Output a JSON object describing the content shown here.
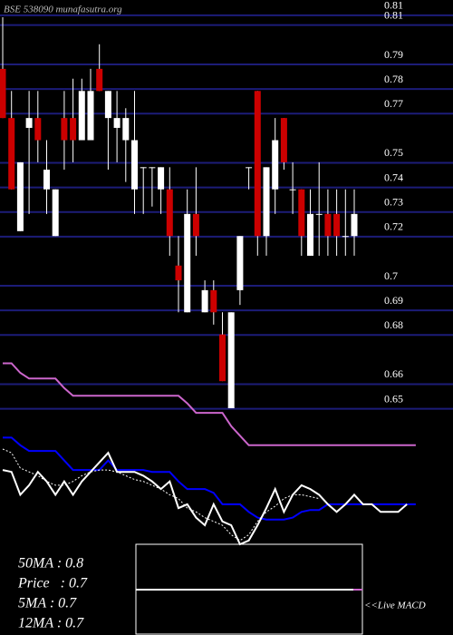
{
  "title": "BSE 538090  munafasutra.org",
  "chart_data": {
    "type": "candlestick",
    "ylim": [
      0.648,
      0.814
    ],
    "yticks": [
      {
        "value": 0.81,
        "label": "0.81"
      },
      {
        "value": 0.806,
        "label": "0.81"
      },
      0.79,
      0.78,
      0.77,
      0.75,
      0.74,
      0.73,
      0.72,
      0.7,
      0.69,
      0.68,
      0.66,
      0.65
    ],
    "grid": true,
    "grid_color": "#1c1c78",
    "up_color": "#ffffff",
    "down_color": "#cc0000",
    "open": [
      0.786,
      0.766,
      0.72,
      0.762,
      0.766,
      0.737,
      0.718,
      0.766,
      0.766,
      0.757,
      0.757,
      0.786,
      0.766,
      0.762,
      0.757,
      0.737,
      0.746,
      0.746,
      0.737,
      0.737,
      0.706,
      0.687,
      0.727,
      0.687,
      0.696,
      0.678,
      0.648,
      0.696,
      0.746,
      0.777,
      0.718,
      0.737,
      0.766,
      0.737,
      0.737,
      0.71,
      0.727,
      0.727,
      0.727,
      0.718,
      0.718
    ],
    "high": [
      0.807,
      0.777,
      0.748,
      0.777,
      0.777,
      0.757,
      0.737,
      0.777,
      0.782,
      0.782,
      0.786,
      0.796,
      0.777,
      0.777,
      0.77,
      0.777,
      0.746,
      0.746,
      0.746,
      0.746,
      0.718,
      0.737,
      0.746,
      0.7,
      0.7,
      0.687,
      0.687,
      0.718,
      0.746,
      0.777,
      0.746,
      0.766,
      0.766,
      0.748,
      0.737,
      0.737,
      0.748,
      0.737,
      0.737,
      0.737,
      0.737
    ],
    "low": [
      0.766,
      0.737,
      0.72,
      0.727,
      0.748,
      0.727,
      0.718,
      0.745,
      0.748,
      0.757,
      0.757,
      0.777,
      0.745,
      0.748,
      0.74,
      0.727,
      0.727,
      0.73,
      0.727,
      0.71,
      0.687,
      0.687,
      0.71,
      0.687,
      0.682,
      0.659,
      0.648,
      0.69,
      0.737,
      0.71,
      0.71,
      0.727,
      0.745,
      0.727,
      0.71,
      0.71,
      0.71,
      0.71,
      0.71,
      0.71,
      0.71
    ],
    "close": [
      0.766,
      0.737,
      0.748,
      0.766,
      0.757,
      0.745,
      0.737,
      0.757,
      0.757,
      0.777,
      0.777,
      0.777,
      0.777,
      0.766,
      0.766,
      0.757,
      0.746,
      0.746,
      0.746,
      0.718,
      0.7,
      0.727,
      0.718,
      0.696,
      0.687,
      0.659,
      0.687,
      0.718,
      0.746,
      0.718,
      0.746,
      0.757,
      0.748,
      0.737,
      0.718,
      0.727,
      0.727,
      0.718,
      0.718,
      0.718,
      0.727
    ],
    "y2lim": [
      0,
      100
    ],
    "indicators": [
      {
        "color": "#cc66cc",
        "dash": false,
        "values": [
          95,
          95,
          90,
          87,
          87,
          87,
          87,
          82,
          78,
          78,
          78,
          78,
          78,
          78,
          78,
          78,
          78,
          78,
          78,
          78,
          78,
          74,
          69,
          69,
          69,
          69,
          62,
          57,
          52,
          52,
          52,
          52,
          52,
          52,
          52,
          52,
          52,
          52,
          52,
          52,
          52,
          52,
          52,
          52,
          52,
          52,
          52,
          52
        ]
      },
      {
        "color": "#0000ff",
        "dash": false,
        "values": [
          56,
          56,
          52,
          49,
          49,
          49,
          49,
          44,
          39,
          39,
          39,
          39,
          44,
          39,
          39,
          39,
          39,
          38,
          38,
          38,
          33,
          29,
          29,
          29,
          27,
          21,
          21,
          21,
          17,
          14,
          13,
          13,
          13,
          14,
          17,
          18,
          18,
          21,
          21,
          21,
          21,
          21,
          21,
          21,
          21,
          21,
          21,
          21
        ]
      },
      {
        "color": "#ffffff",
        "dash": false,
        "values": [
          39,
          38,
          26,
          31,
          38,
          33,
          26,
          33,
          26,
          33,
          38,
          43,
          48,
          38,
          38,
          38,
          36,
          33,
          29,
          33,
          19,
          21,
          14,
          10,
          21,
          12,
          10,
          0,
          2,
          10,
          19,
          29,
          17,
          26,
          31,
          29,
          26,
          21,
          17,
          21,
          26,
          21,
          21,
          17,
          17,
          17,
          21,
          null
        ]
      },
      {
        "color": "#ffffff",
        "dash": true,
        "values": [
          50,
          48,
          40,
          38,
          36,
          33,
          31,
          31,
          33,
          36,
          38,
          39,
          39,
          38,
          36,
          34,
          33,
          31,
          29,
          26,
          24,
          19,
          17,
          14,
          12,
          10,
          5,
          2,
          5,
          12,
          17,
          20,
          24,
          26,
          26,
          25,
          24,
          null,
          null,
          null,
          null,
          null,
          null,
          null,
          null,
          null,
          null,
          null
        ]
      }
    ],
    "stats": [
      "50MA : 0.8",
      "Price   : 0.7",
      "5MA : 0.7",
      "12MA : 0.7"
    ],
    "macd_label": "<<Live MACD"
  }
}
